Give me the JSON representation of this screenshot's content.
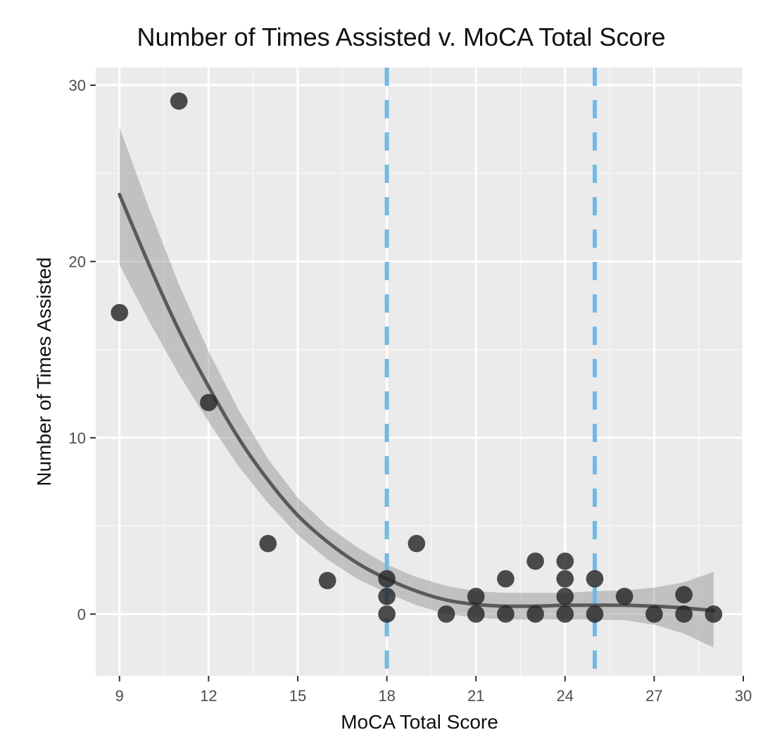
{
  "chart_data": {
    "type": "scatter",
    "title": "Number of Times Assisted v. MoCA Total Score",
    "xlabel": "MoCA Total Score",
    "ylabel": "Number of Times Assisted",
    "xlim": [
      8.2,
      30
    ],
    "ylim": [
      -3.5,
      31
    ],
    "x_ticks": [
      9,
      12,
      15,
      18,
      21,
      24,
      27,
      30
    ],
    "y_ticks": [
      0,
      10,
      20,
      30
    ],
    "grid": true,
    "vlines": [
      {
        "x": 18,
        "style": "dashed",
        "color": "#74b9e6"
      },
      {
        "x": 25,
        "style": "dashed",
        "color": "#74b9e6"
      }
    ],
    "points": [
      {
        "x": 9,
        "y": 17.1
      },
      {
        "x": 11,
        "y": 29.1
      },
      {
        "x": 12,
        "y": 12.0
      },
      {
        "x": 14,
        "y": 4.0
      },
      {
        "x": 16,
        "y": 1.9
      },
      {
        "x": 18,
        "y": 2.0
      },
      {
        "x": 18,
        "y": 1.0
      },
      {
        "x": 18,
        "y": 0.0
      },
      {
        "x": 19,
        "y": 4.0
      },
      {
        "x": 20,
        "y": 0.0
      },
      {
        "x": 21,
        "y": 1.0
      },
      {
        "x": 21,
        "y": 0.0
      },
      {
        "x": 22,
        "y": 2.0
      },
      {
        "x": 22,
        "y": 0.0
      },
      {
        "x": 23,
        "y": 3.0
      },
      {
        "x": 23,
        "y": 0.0
      },
      {
        "x": 24,
        "y": 3.0
      },
      {
        "x": 24,
        "y": 2.0
      },
      {
        "x": 24,
        "y": 1.0
      },
      {
        "x": 24,
        "y": 0.0
      },
      {
        "x": 25,
        "y": 2.0
      },
      {
        "x": 25,
        "y": 0.0
      },
      {
        "x": 26,
        "y": 1.0
      },
      {
        "x": 27,
        "y": 0.0
      },
      {
        "x": 28,
        "y": 1.1
      },
      {
        "x": 28,
        "y": 0.0
      },
      {
        "x": 29,
        "y": 0.0
      }
    ],
    "fit": {
      "x": [
        9,
        10,
        11,
        12,
        13,
        14,
        15,
        16,
        17,
        18,
        19,
        20,
        21,
        22,
        23,
        24,
        25,
        26,
        27,
        28,
        29
      ],
      "y": [
        23.8,
        19.8,
        16.1,
        12.9,
        10.0,
        7.6,
        5.6,
        4.1,
        2.9,
        2.0,
        1.3,
        0.8,
        0.55,
        0.45,
        0.45,
        0.5,
        0.5,
        0.5,
        0.45,
        0.35,
        0.2
      ],
      "ci_lower": [
        19.8,
        16.6,
        13.6,
        10.9,
        8.4,
        6.3,
        4.5,
        3.1,
        2.0,
        1.2,
        0.5,
        0.0,
        -0.2,
        -0.3,
        -0.3,
        -0.3,
        -0.3,
        -0.35,
        -0.6,
        -1.1,
        -1.9
      ],
      "ci_upper": [
        27.6,
        23.0,
        18.7,
        14.9,
        11.6,
        8.8,
        6.6,
        5.0,
        3.8,
        2.8,
        2.1,
        1.6,
        1.3,
        1.2,
        1.2,
        1.2,
        1.3,
        1.35,
        1.5,
        1.8,
        2.4
      ]
    }
  }
}
